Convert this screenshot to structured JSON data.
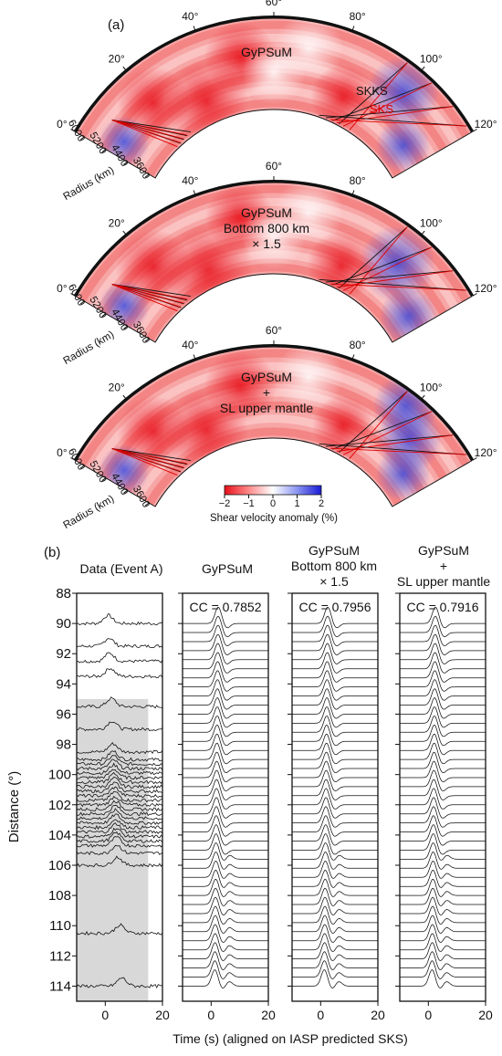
{
  "panel_a": {
    "label": "(a)",
    "colorbar": {
      "ticks": [
        "−2",
        "−1",
        "0",
        "1",
        "2"
      ],
      "label": "Shear velocity anomaly (%)",
      "colors": [
        "#e8101a",
        "#ff7a7a",
        "#ffffff",
        "#7f8ef2",
        "#1a1ad6"
      ]
    },
    "sections": [
      {
        "model_lines": [
          "GyPSuM"
        ],
        "phase_labels": {
          "skks": "SKKS",
          "sks": "SKS"
        },
        "angle_ticks": [
          "0°",
          "20°",
          "40°",
          "60°",
          "80°",
          "100°",
          "120°"
        ],
        "radius_ticks": [
          "6000",
          "5200",
          "4400",
          "3600"
        ],
        "radius_label": "Radius (km)"
      },
      {
        "model_lines": [
          "GyPSuM",
          "Bottom 800 km",
          "× 1.5"
        ],
        "angle_ticks": [
          "0°",
          "20°",
          "40°",
          "60°",
          "80°",
          "100°",
          "120°"
        ],
        "radius_ticks": [
          "6000",
          "5200",
          "4400",
          "3600"
        ],
        "radius_label": "Radius (km)"
      },
      {
        "model_lines": [
          "GyPSuM",
          "+",
          "SL upper mantle"
        ],
        "angle_ticks": [
          "0°",
          "20°",
          "40°",
          "60°",
          "80°",
          "100°",
          "120°"
        ],
        "radius_ticks": [
          "6000",
          "5200",
          "4400",
          "3600"
        ],
        "radius_label": "Radius (km)"
      }
    ],
    "colors": {
      "skks_ray": "#000000",
      "sks_ray": "#dd0000",
      "sks_label": "#dd0000"
    }
  },
  "panel_b": {
    "label": "(b)",
    "y_label": "Distance (°)",
    "x_label": "Time (s) (aligned on IASP predicted SKS)",
    "y_ticks": [
      "88",
      "90",
      "92",
      "94",
      "96",
      "98",
      "100",
      "102",
      "104",
      "106",
      "108",
      "110",
      "112",
      "114"
    ],
    "x_ticks": [
      "0",
      "20"
    ],
    "columns": [
      {
        "title_lines": [
          "Data (Event A)"
        ],
        "cc": ""
      },
      {
        "title_lines": [
          "GyPSuM"
        ],
        "cc": "CC = 0.7852"
      },
      {
        "title_lines": [
          "GyPSuM",
          "Bottom 800 km",
          "× 1.5"
        ],
        "cc": "CC = 0.7956"
      },
      {
        "title_lines": [
          "GyPSuM",
          "+",
          "SL upper mantle"
        ],
        "cc": "CC = 0.7916"
      }
    ],
    "shade_color": "#d8d8d8"
  },
  "chart_data": [
    {
      "type": "line",
      "title": "Data (Event A)",
      "xlabel": "Time (s) (aligned on IASP predicted SKS)",
      "ylabel": "Distance (°)",
      "xlim": [
        -10,
        20
      ],
      "ylim": [
        115,
        88
      ],
      "shaded_region": {
        "x": [
          -10,
          15
        ],
        "y": [
          95,
          115
        ]
      },
      "trace_distances": [
        90,
        91.5,
        92.5,
        93.5,
        95.5,
        97,
        98.5,
        99,
        99.3,
        99.6,
        99.9,
        100.2,
        100.5,
        100.8,
        101.1,
        101.4,
        101.7,
        102,
        102.3,
        102.6,
        102.9,
        103.2,
        103.5,
        103.8,
        104.1,
        104.4,
        104.7,
        105.2,
        106,
        110.5,
        114
      ]
    },
    {
      "type": "line",
      "title": "GyPSuM",
      "cc": "CC = 0.7852",
      "xlim": [
        -10,
        20
      ],
      "ylim": [
        115,
        88
      ],
      "trace_spacing_deg": 0.6,
      "trace_range_deg": [
        90,
        114.5
      ]
    },
    {
      "type": "line",
      "title": "GyPSuM Bottom 800 km × 1.5",
      "cc": "CC = 0.7956",
      "xlim": [
        -10,
        20
      ],
      "ylim": [
        115,
        88
      ],
      "trace_spacing_deg": 0.6,
      "trace_range_deg": [
        90,
        114.5
      ]
    },
    {
      "type": "line",
      "title": "GyPSuM + SL upper mantle",
      "cc": "CC = 0.7916",
      "xlim": [
        -10,
        20
      ],
      "ylim": [
        115,
        88
      ],
      "trace_spacing_deg": 0.6,
      "trace_range_deg": [
        90,
        114.5
      ]
    }
  ]
}
